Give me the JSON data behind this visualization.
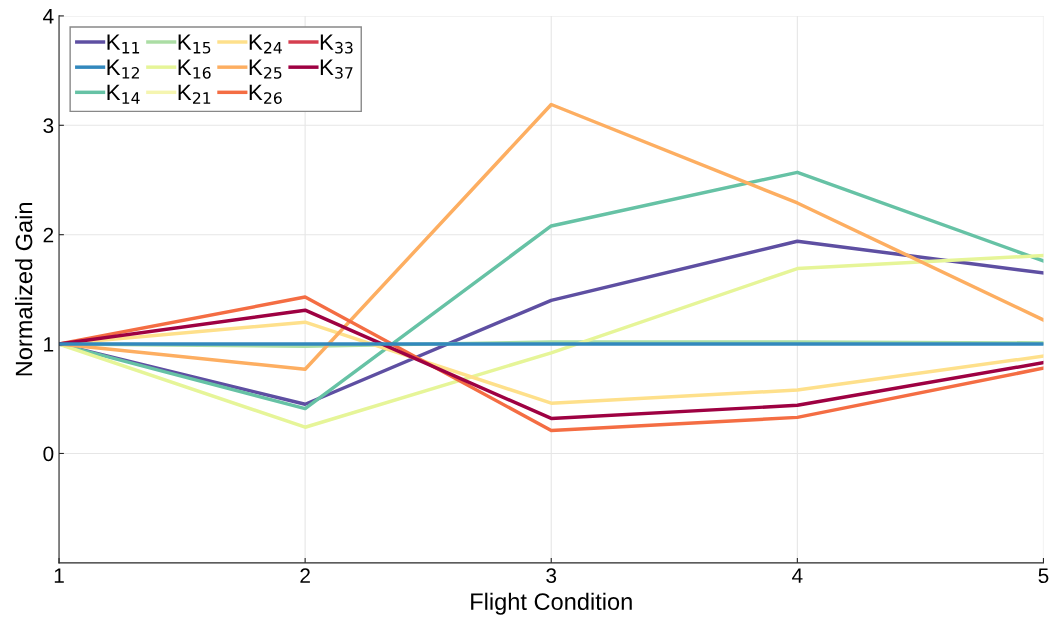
{
  "chart_data": {
    "type": "line",
    "xlabel": "Flight Condition",
    "ylabel": "Normalized Gain",
    "x": [
      1,
      2,
      3,
      4,
      5
    ],
    "xlim": [
      1,
      5
    ],
    "xticks": [
      1,
      2,
      3,
      4,
      5
    ],
    "ylim": [
      -1,
      4
    ],
    "yticks": [
      0,
      1,
      2,
      3,
      4
    ],
    "grid": true,
    "legend": "top left",
    "marker": "none",
    "line_style": "solid",
    "series": [
      {
        "name": "K$_{11}$",
        "color": "#5e4fa2",
        "values": [
          1,
          0.45,
          1.4,
          1.94,
          1.65
        ]
      },
      {
        "name": "K$_{12}$",
        "color": "#3288bd",
        "values": [
          1,
          1,
          1,
          1,
          1
        ]
      },
      {
        "name": "K$_{14}$",
        "color": "#66c2a5",
        "values": [
          1,
          0.41,
          2.08,
          2.57,
          1.76
        ]
      },
      {
        "name": "K$_{15}$",
        "color": "#abdda4",
        "values": [
          1,
          0.98,
          1.02,
          1.02,
          1.01
        ]
      },
      {
        "name": "K$_{16}$",
        "color": "#e6f598",
        "values": [
          1,
          0.24,
          0.92,
          1.69,
          1.81
        ]
      },
      {
        "name": "K$_{21}$",
        "color": "#f5f5b0",
        "values": [
          null,
          null,
          null,
          null,
          null
        ]
      },
      {
        "name": "K$_{24}$",
        "color": "#fee08b",
        "values": [
          1,
          1.2,
          0.46,
          0.58,
          0.89
        ]
      },
      {
        "name": "K$_{25}$",
        "color": "#fdae61",
        "values": [
          1,
          0.77,
          3.19,
          2.29,
          1.22
        ]
      },
      {
        "name": "K$_{26}$",
        "color": "#f46d43",
        "values": [
          1,
          1.43,
          0.21,
          0.33,
          0.78
        ]
      },
      {
        "name": "K$_{33}$",
        "color": "#d53e4f",
        "values": [
          null,
          null,
          null,
          null,
          null
        ]
      },
      {
        "name": "K$_{37}$",
        "color": "#9e0142",
        "values": [
          1,
          1.31,
          0.32,
          0.44,
          0.83
        ]
      }
    ]
  }
}
